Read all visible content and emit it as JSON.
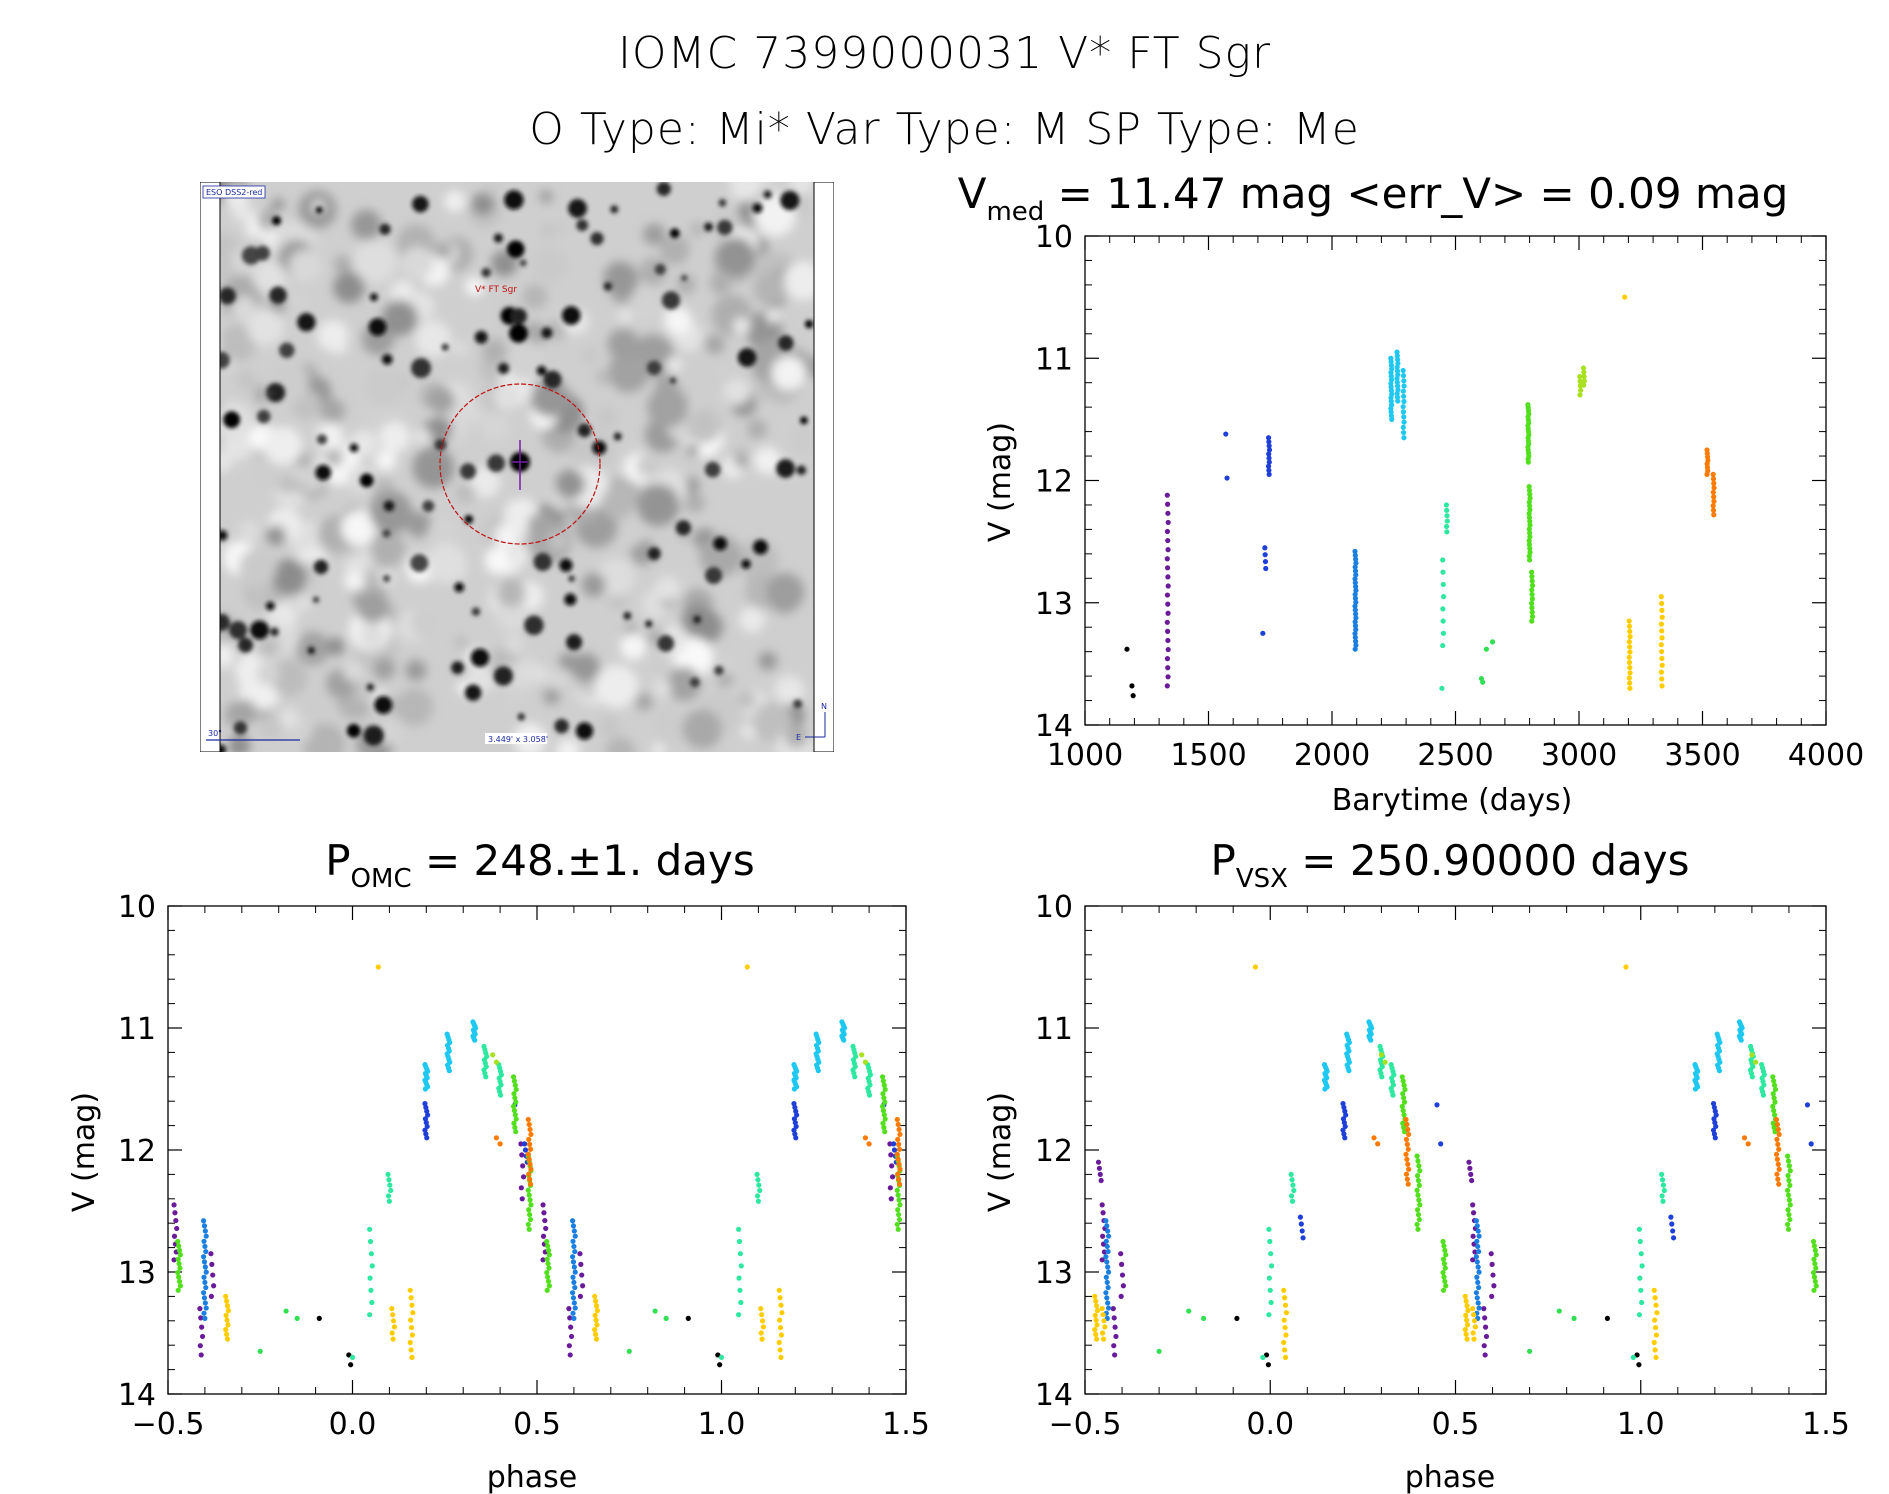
{
  "header": {
    "title_line1": "IOMC 7399000031    V* FT Sgr",
    "title_line2": "O Type: Mi*  Var Type: M  SP Type: Me"
  },
  "finder": {
    "survey_label": "ESO DSS2-red",
    "object_label": "V* FT Sgr",
    "scale_label": "30\"",
    "fov_label": "3.449' x 3.058'",
    "north_label": "N",
    "east_label": "E"
  },
  "chart_data": [
    {
      "type": "scatter",
      "panel": "lightcurve",
      "title_main": "V",
      "title_sub": "med",
      "title_rest": " = 11.47 mag <err_V> = 0.09 mag",
      "xlabel": "Barytime (days)",
      "ylabel": "V (mag)",
      "xlim": [
        1000,
        4000
      ],
      "ylim": [
        14,
        10
      ],
      "xticks": [
        "1000",
        "1500",
        "2000",
        "2500",
        "3000",
        "3500",
        "4000"
      ],
      "yticks": [
        "10",
        "11",
        "12",
        "13",
        "14"
      ],
      "series": [
        {
          "color": "#000000",
          "points": [
            [
              1170,
              13.38
            ],
            [
              1190,
              13.68
            ],
            [
              1195,
              13.76
            ]
          ]
        },
        {
          "color": "#6a1b9a",
          "segments": [
            [
              1335,
              12.12,
              13.68,
              22
            ]
          ]
        },
        {
          "color": "#1e3fd8",
          "points": [
            [
              1570,
              11.62
            ],
            [
              1575,
              11.98
            ],
            [
              1720,
              13.25
            ]
          ],
          "segments": [
            [
              1730,
              12.55,
              12.72,
              4
            ],
            [
              1745,
              11.65,
              11.95,
              10
            ]
          ]
        },
        {
          "color": "#1a7fe0",
          "segments": [
            [
              2095,
              12.58,
              13.38,
              26
            ]
          ]
        },
        {
          "color": "#1ec8f0",
          "segments": [
            [
              2240,
              11.0,
              11.5,
              18
            ],
            [
              2265,
              10.95,
              11.35,
              14
            ],
            [
              2290,
              11.1,
              11.65,
              14
            ]
          ]
        },
        {
          "color": "#2ee8a0",
          "points": [
            [
              2445,
              13.7
            ]
          ],
          "segments": [
            [
              2450,
              12.65,
              13.35,
              8
            ],
            [
              2465,
              12.2,
              12.42,
              6
            ]
          ]
        },
        {
          "color": "#30e050",
          "points": [
            [
              2610,
              13.65
            ],
            [
              2625,
              13.38
            ],
            [
              2650,
              13.32
            ],
            [
              2605,
              13.62
            ]
          ]
        },
        {
          "color": "#52e01e",
          "segments": [
            [
              2795,
              11.38,
              11.85,
              20
            ],
            [
              2800,
              12.05,
              12.65,
              20
            ],
            [
              2810,
              12.75,
              13.15,
              12
            ]
          ]
        },
        {
          "color": "#a8e01e",
          "segments": [
            [
              3005,
              11.15,
              11.3,
              5
            ],
            [
              3020,
              11.08,
              11.22,
              5
            ]
          ]
        },
        {
          "color": "#ffcc00",
          "points": [
            [
              3185,
              10.5
            ]
          ],
          "segments": [
            [
              3205,
              13.15,
              13.7,
              14
            ],
            [
              3335,
              12.95,
              13.68,
              14
            ]
          ]
        },
        {
          "color": "#ff7a00",
          "segments": [
            [
              3520,
              11.75,
              11.95,
              8
            ],
            [
              3545,
              11.95,
              12.28,
              10
            ]
          ]
        }
      ]
    },
    {
      "type": "scatter",
      "panel": "phase_omc",
      "title_main": "P",
      "title_sub": "OMC",
      "title_rest": " = 248.±1. days",
      "xlabel": "phase",
      "ylabel": "V (mag)",
      "xlim": [
        -0.5,
        1.5
      ],
      "ylim": [
        14,
        10
      ],
      "xticks": [
        "−0.5",
        "0.0",
        "0.5",
        "1.0",
        "1.5"
      ],
      "yticks": [
        "10",
        "11",
        "12",
        "13",
        "14"
      ],
      "points_period": [
        {
          "color": "#000000",
          "points": [
            [
              0.91,
              13.38
            ],
            [
              0.99,
              13.68
            ],
            [
              0.995,
              13.76
            ]
          ]
        },
        {
          "color": "#6a1b9a",
          "segments": [
            [
              0.46,
              11.95,
              12.4,
              6
            ],
            [
              0.52,
              12.45,
              12.9,
              8
            ],
            [
              0.59,
              13.3,
              13.68,
              6
            ],
            [
              0.62,
              12.85,
              13.2,
              5
            ]
          ]
        },
        {
          "color": "#1e3fd8",
          "points": [
            [
              0.44,
              11.63
            ]
          ],
          "segments": [
            [
              0.2,
              11.62,
              11.9,
              10
            ],
            [
              0.47,
              11.95,
              12.1,
              4
            ]
          ]
        },
        {
          "color": "#1a7fe0",
          "segments": [
            [
              0.6,
              12.58,
              13.38,
              20
            ]
          ]
        },
        {
          "color": "#1ec8f0",
          "segments": [
            [
              0.2,
              11.3,
              11.5,
              12
            ],
            [
              0.26,
              11.05,
              11.35,
              14
            ],
            [
              0.33,
              10.95,
              11.1,
              10
            ]
          ]
        },
        {
          "color": "#2ee8a0",
          "points": [
            [
              0.0,
              13.7
            ]
          ],
          "segments": [
            [
              0.05,
              12.65,
              13.35,
              8
            ],
            [
              0.1,
              12.2,
              12.42,
              6
            ],
            [
              0.36,
              11.15,
              11.4,
              10
            ],
            [
              0.4,
              11.3,
              11.55,
              10
            ]
          ]
        },
        {
          "color": "#30e050",
          "points": [
            [
              0.75,
              13.65
            ],
            [
              0.82,
              13.32
            ],
            [
              0.85,
              13.38
            ]
          ]
        },
        {
          "color": "#52e01e",
          "segments": [
            [
              0.44,
              11.4,
              11.85,
              14
            ],
            [
              0.48,
              12.05,
              12.65,
              16
            ],
            [
              0.53,
              12.75,
              13.15,
              12
            ]
          ]
        },
        {
          "color": "#a8e01e",
          "points": [
            [
              0.38,
              11.22
            ],
            [
              0.39,
              11.28
            ]
          ]
        },
        {
          "color": "#ffcc00",
          "points": [
            [
              0.07,
              10.5
            ]
          ],
          "segments": [
            [
              0.11,
              13.3,
              13.55,
              6
            ],
            [
              0.16,
              13.15,
              13.7,
              10
            ],
            [
              0.66,
              13.2,
              13.55,
              10
            ]
          ]
        },
        {
          "color": "#ff7a00",
          "points": [
            [
              0.39,
              11.9
            ],
            [
              0.4,
              11.95
            ]
          ],
          "segments": [
            [
              0.48,
              11.75,
              12.28,
              14
            ]
          ]
        }
      ]
    },
    {
      "type": "scatter",
      "panel": "phase_vsx",
      "title_main": "P",
      "title_sub": "VSX",
      "title_rest": " = 250.90000 days",
      "xlabel": "phase",
      "ylabel": "V (mag)",
      "xlim": [
        -0.5,
        1.5
      ],
      "ylim": [
        14,
        10
      ],
      "xticks": [
        "−0.5",
        "0.0",
        "0.5",
        "1.0",
        "1.5"
      ],
      "yticks": [
        "10",
        "11",
        "12",
        "13",
        "14"
      ],
      "points_period": [
        {
          "color": "#000000",
          "points": [
            [
              0.91,
              13.38
            ],
            [
              0.99,
              13.68
            ],
            [
              0.995,
              13.76
            ]
          ]
        },
        {
          "color": "#6a1b9a",
          "segments": [
            [
              0.54,
              12.1,
              12.25,
              4
            ],
            [
              0.55,
              12.45,
              12.9,
              8
            ],
            [
              0.58,
              13.3,
              13.68,
              6
            ],
            [
              0.6,
              12.85,
              13.2,
              5
            ]
          ]
        },
        {
          "color": "#1e3fd8",
          "points": [
            [
              0.45,
              11.63
            ],
            [
              0.46,
              11.95
            ]
          ],
          "segments": [
            [
              0.2,
              11.62,
              11.9,
              10
            ],
            [
              0.085,
              12.55,
              12.72,
              4
            ]
          ]
        },
        {
          "color": "#1a7fe0",
          "segments": [
            [
              0.56,
              12.58,
              13.38,
              20
            ]
          ]
        },
        {
          "color": "#1ec8f0",
          "segments": [
            [
              0.15,
              11.3,
              11.5,
              12
            ],
            [
              0.21,
              11.05,
              11.35,
              14
            ],
            [
              0.27,
              10.95,
              11.1,
              10
            ]
          ]
        },
        {
          "color": "#2ee8a0",
          "points": [
            [
              -0.02,
              13.7
            ]
          ],
          "segments": [
            [
              0.0,
              12.65,
              13.35,
              8
            ],
            [
              0.06,
              12.2,
              12.42,
              6
            ],
            [
              0.3,
              11.15,
              11.4,
              10
            ],
            [
              0.33,
              11.3,
              11.55,
              10
            ]
          ]
        },
        {
          "color": "#30e050",
          "points": [
            [
              0.7,
              13.65
            ],
            [
              0.78,
              13.32
            ],
            [
              0.82,
              13.38
            ]
          ]
        },
        {
          "color": "#52e01e",
          "segments": [
            [
              0.36,
              11.4,
              11.85,
              14
            ],
            [
              0.4,
              12.05,
              12.65,
              16
            ],
            [
              0.47,
              12.75,
              13.15,
              12
            ]
          ]
        },
        {
          "color": "#a8e01e",
          "points": [
            [
              0.3,
              11.22
            ],
            [
              0.31,
              11.28
            ]
          ]
        },
        {
          "color": "#ffcc00",
          "points": [
            [
              -0.04,
              10.5
            ]
          ],
          "segments": [
            [
              0.04,
              13.15,
              13.7,
              10
            ],
            [
              0.53,
              13.2,
              13.55,
              10
            ],
            [
              0.55,
              13.3,
              13.55,
              6
            ]
          ]
        },
        {
          "color": "#ff7a00",
          "points": [
            [
              0.28,
              11.9
            ],
            [
              0.29,
              11.95
            ]
          ],
          "segments": [
            [
              0.37,
              11.75,
              12.28,
              14
            ]
          ]
        }
      ]
    }
  ]
}
